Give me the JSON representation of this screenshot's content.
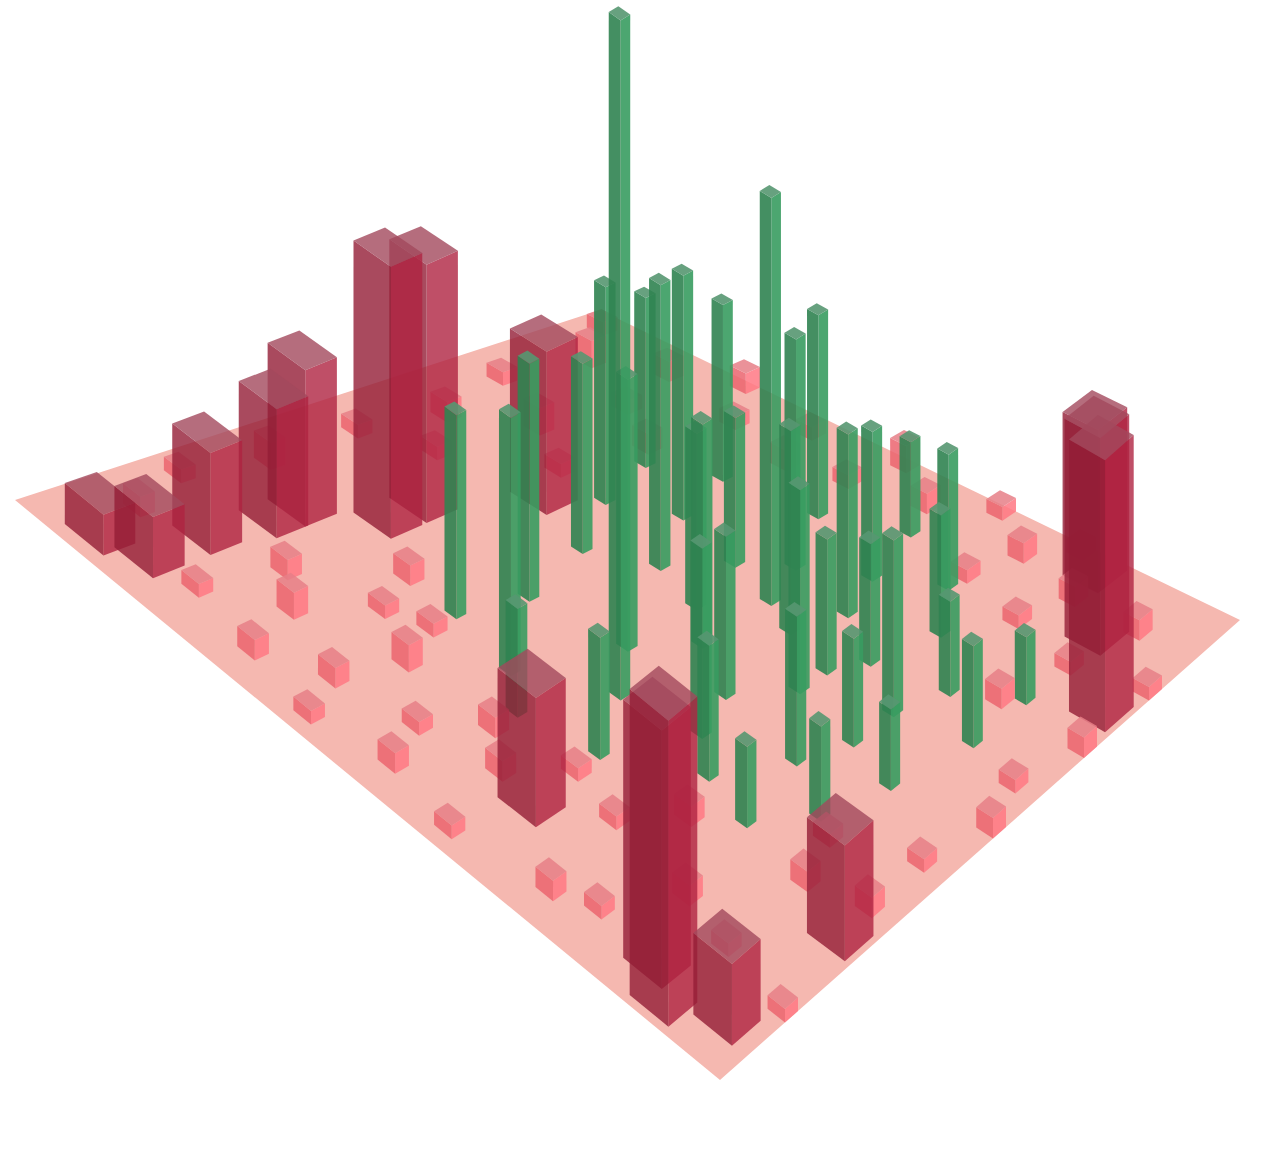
{
  "chart_data": {
    "type": "bar3d",
    "xlim": [
      0,
      40
    ],
    "ylim": [
      0,
      40
    ],
    "tick_labels": false,
    "grid": false,
    "series": [
      {
        "color": "#e0606a",
        "values": [
          [
            5,
            2,
            3
          ],
          [
            9,
            1,
            2
          ],
          [
            14,
            2,
            4
          ],
          [
            20,
            2,
            2
          ],
          [
            25,
            3,
            3
          ],
          [
            30,
            2,
            2
          ],
          [
            35,
            3,
            4
          ],
          [
            38,
            1,
            2
          ],
          [
            3,
            7,
            2
          ],
          [
            8,
            8,
            3
          ],
          [
            22,
            5,
            2
          ],
          [
            28,
            6,
            4
          ],
          [
            33,
            7,
            2
          ],
          [
            37,
            6,
            3
          ],
          [
            2,
            11,
            3
          ],
          [
            6,
            10,
            4
          ],
          [
            10,
            12,
            2
          ],
          [
            13,
            11,
            3
          ],
          [
            26,
            9,
            2
          ],
          [
            31,
            10,
            3
          ],
          [
            36,
            11,
            2
          ],
          [
            39,
            9,
            3
          ],
          [
            1,
            15,
            2
          ],
          [
            4,
            14,
            3
          ],
          [
            8,
            15,
            4
          ],
          [
            11,
            14,
            2
          ],
          [
            35,
            15,
            3
          ],
          [
            38,
            14,
            2
          ],
          [
            2,
            19,
            3
          ],
          [
            5,
            18,
            2
          ],
          [
            8,
            20,
            3
          ],
          [
            36,
            18,
            2
          ],
          [
            39,
            19,
            4
          ],
          [
            1,
            23,
            2
          ],
          [
            6,
            22,
            3
          ],
          [
            9,
            24,
            2
          ],
          [
            37,
            22,
            3
          ],
          [
            39,
            25,
            2
          ],
          [
            2,
            28,
            3
          ],
          [
            8,
            27,
            2
          ],
          [
            11,
            29,
            3
          ],
          [
            34,
            27,
            2
          ],
          [
            37,
            28,
            3
          ],
          [
            3,
            30,
            2
          ],
          [
            7,
            32,
            3
          ],
          [
            33,
            31,
            2
          ],
          [
            36,
            32,
            3
          ],
          [
            39,
            30,
            2
          ],
          [
            6,
            35,
            2
          ],
          [
            12,
            35,
            3
          ],
          [
            15,
            34,
            2
          ],
          [
            28,
            34,
            3
          ],
          [
            32,
            35,
            2
          ],
          [
            36,
            36,
            3
          ],
          [
            5,
            39,
            2
          ],
          [
            13,
            38,
            3
          ],
          [
            17,
            38,
            2
          ],
          [
            21,
            39,
            3
          ],
          [
            24,
            38,
            2
          ],
          [
            28,
            39,
            3
          ],
          [
            33,
            39,
            2
          ]
        ]
      },
      {
        "color": "#8c1c34",
        "values": [
          [
            15,
            7,
            40
          ],
          [
            17.5,
            7,
            38
          ],
          [
            12,
            4.5,
            23
          ],
          [
            10,
            4.5,
            19
          ],
          [
            23,
            9.5,
            24
          ],
          [
            6,
            4,
            15
          ],
          [
            2,
            4,
            9
          ],
          [
            1,
            2,
            6
          ],
          [
            0.5,
            34.5,
            45
          ],
          [
            2,
            33,
            38
          ],
          [
            5,
            23.5,
            19
          ],
          [
            10,
            37.5,
            17
          ],
          [
            2,
            37,
            12
          ],
          [
            34,
            34,
            32
          ],
          [
            37.5,
            31,
            24
          ],
          [
            30,
            37.5,
            40
          ]
        ]
      },
      {
        "color": "#2e7d4e",
        "values": [
          [
            15,
            22,
            100
          ],
          [
            26,
            22,
            60
          ],
          [
            12,
            18,
            38
          ],
          [
            13,
            14,
            30
          ],
          [
            17,
            15,
            35
          ],
          [
            22,
            14,
            28
          ],
          [
            24,
            17,
            42
          ],
          [
            26,
            12,
            32
          ],
          [
            28,
            15,
            36
          ],
          [
            30,
            11,
            25
          ],
          [
            18,
            20,
            40
          ],
          [
            21,
            22,
            33
          ],
          [
            23,
            20,
            26
          ],
          [
            25,
            24,
            30
          ],
          [
            27,
            19,
            22
          ],
          [
            29,
            21,
            34
          ],
          [
            16,
            26,
            28
          ],
          [
            19,
            25,
            24
          ],
          [
            22,
            27,
            30
          ],
          [
            24,
            27,
            20
          ],
          [
            26,
            28,
            18
          ],
          [
            28,
            25,
            27
          ],
          [
            31,
            24,
            22
          ],
          [
            33,
            19,
            30
          ],
          [
            32,
            14,
            26
          ],
          [
            14,
            28,
            20
          ],
          [
            18,
            30,
            22
          ],
          [
            21,
            31,
            16
          ],
          [
            24,
            31,
            26
          ],
          [
            27,
            32,
            14
          ],
          [
            30,
            29,
            18
          ],
          [
            33,
            27,
            20
          ],
          [
            20,
            34,
            12
          ],
          [
            25,
            35,
            15
          ],
          [
            29,
            35,
            10
          ],
          [
            11,
            24,
            18
          ],
          [
            10,
            20,
            16
          ],
          [
            35,
            23,
            14
          ],
          [
            16,
            33,
            14
          ],
          [
            13,
            31,
            12
          ]
        ]
      }
    ]
  }
}
